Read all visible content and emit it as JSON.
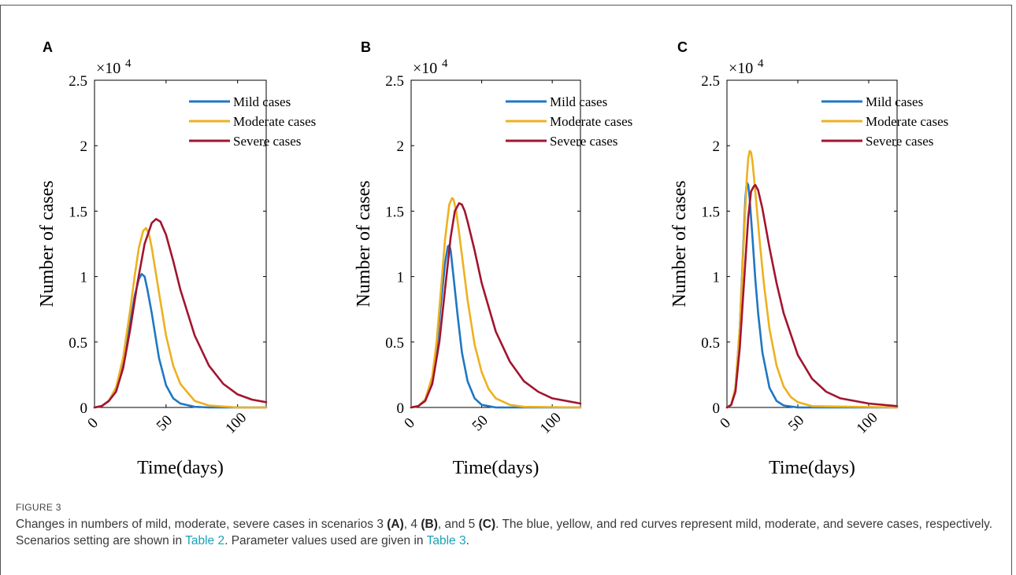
{
  "figure": {
    "label": "FIGURE 3",
    "caption": {
      "part1": "Changes in numbers of mild, moderate, severe cases in scenarios 3 ",
      "a": "(A)",
      "part2": ", 4 ",
      "b": "(B)",
      "part3": ", and 5 ",
      "c": "(C)",
      "part4": ". The blue, yellow, and red curves represent mild, moderate, and severe cases, respectively. Scenarios setting are shown in ",
      "link1": "Table 2",
      "part5": ". Parameter values used are given in ",
      "link2": "Table 3",
      "part6": "."
    }
  },
  "colors": {
    "mild": "#1f77c4",
    "moderate": "#edb120",
    "severe": "#a2142f",
    "link": "#1aa3b8"
  },
  "chart_data": [
    {
      "type": "line",
      "panel": "A",
      "xlabel": "Time(days)",
      "ylabel": "Number of cases",
      "exponent_label": "×10",
      "exponent_sup": "4",
      "xlim": [
        0,
        120
      ],
      "ylim": [
        0,
        2.5
      ],
      "xticks": [
        "0",
        "50",
        "100"
      ],
      "yticks": [
        "0",
        "0.5",
        "1",
        "1.5",
        "2",
        "2.5"
      ],
      "legend_position": "top-right",
      "series": [
        {
          "name": "Mild cases",
          "x": [
            0,
            5,
            10,
            15,
            20,
            25,
            28,
            31,
            33,
            35,
            37,
            40,
            45,
            50,
            55,
            60,
            70,
            80,
            100,
            120
          ],
          "y": [
            0,
            0.01,
            0.05,
            0.15,
            0.35,
            0.65,
            0.85,
            0.98,
            1.02,
            1.0,
            0.9,
            0.72,
            0.38,
            0.17,
            0.07,
            0.03,
            0.005,
            0,
            0,
            0
          ]
        },
        {
          "name": "Moderate cases",
          "x": [
            0,
            5,
            10,
            15,
            20,
            25,
            28,
            31,
            34,
            36,
            38,
            40,
            45,
            50,
            55,
            60,
            70,
            80,
            100,
            120
          ],
          "y": [
            0,
            0.01,
            0.05,
            0.15,
            0.38,
            0.75,
            1.0,
            1.22,
            1.35,
            1.37,
            1.33,
            1.22,
            0.88,
            0.55,
            0.32,
            0.18,
            0.05,
            0.015,
            0,
            0
          ]
        },
        {
          "name": "Severe cases",
          "x": [
            0,
            5,
            10,
            15,
            20,
            25,
            30,
            35,
            40,
            43,
            46,
            50,
            55,
            60,
            70,
            80,
            90,
            100,
            110,
            120
          ],
          "y": [
            0,
            0.01,
            0.05,
            0.12,
            0.3,
            0.6,
            0.95,
            1.25,
            1.41,
            1.44,
            1.42,
            1.32,
            1.12,
            0.9,
            0.55,
            0.32,
            0.18,
            0.1,
            0.06,
            0.04
          ]
        }
      ]
    },
    {
      "type": "line",
      "panel": "B",
      "xlabel": "Time(days)",
      "ylabel": "Number of cases",
      "exponent_label": "×10",
      "exponent_sup": "4",
      "xlim": [
        0,
        120
      ],
      "ylim": [
        0,
        2.5
      ],
      "xticks": [
        "0",
        "50",
        "100"
      ],
      "yticks": [
        "0",
        "0.5",
        "1",
        "1.5",
        "2",
        "2.5"
      ],
      "legend_position": "top-right",
      "series": [
        {
          "name": "Mild cases",
          "x": [
            0,
            5,
            10,
            15,
            18,
            21,
            24,
            26,
            27,
            28,
            30,
            33,
            36,
            40,
            45,
            50,
            60,
            70,
            100,
            120
          ],
          "y": [
            0,
            0.01,
            0.06,
            0.22,
            0.45,
            0.78,
            1.1,
            1.23,
            1.24,
            1.2,
            1.0,
            0.7,
            0.42,
            0.2,
            0.07,
            0.02,
            0,
            0,
            0,
            0
          ]
        },
        {
          "name": "Moderate cases",
          "x": [
            0,
            5,
            10,
            15,
            18,
            21,
            24,
            27,
            29,
            30,
            32,
            35,
            40,
            45,
            50,
            55,
            60,
            70,
            80,
            120
          ],
          "y": [
            0,
            0.01,
            0.06,
            0.24,
            0.5,
            0.88,
            1.28,
            1.55,
            1.6,
            1.59,
            1.5,
            1.25,
            0.82,
            0.48,
            0.27,
            0.14,
            0.07,
            0.02,
            0.005,
            0
          ]
        },
        {
          "name": "Severe cases",
          "x": [
            0,
            5,
            10,
            15,
            20,
            25,
            28,
            31,
            34,
            36,
            38,
            40,
            45,
            50,
            60,
            70,
            80,
            90,
            100,
            120
          ],
          "y": [
            0,
            0.01,
            0.05,
            0.18,
            0.5,
            1.0,
            1.3,
            1.5,
            1.56,
            1.55,
            1.5,
            1.42,
            1.2,
            0.95,
            0.58,
            0.35,
            0.2,
            0.12,
            0.07,
            0.03
          ]
        }
      ]
    },
    {
      "type": "line",
      "panel": "C",
      "xlabel": "Time(days)",
      "ylabel": "Number of cases",
      "exponent_label": "×10",
      "exponent_sup": "4",
      "xlim": [
        0,
        120
      ],
      "ylim": [
        0,
        2.5
      ],
      "xticks": [
        "0",
        "50",
        "100"
      ],
      "yticks": [
        "0",
        "0.5",
        "1",
        "1.5",
        "2",
        "2.5"
      ],
      "legend_position": "top-right",
      "series": [
        {
          "name": "Mild cases",
          "x": [
            0,
            3,
            6,
            9,
            11,
            13,
            14,
            15,
            16,
            18,
            20,
            22,
            25,
            30,
            35,
            40,
            50,
            60,
            100,
            120
          ],
          "y": [
            0,
            0.02,
            0.15,
            0.6,
            1.1,
            1.6,
            1.72,
            1.7,
            1.6,
            1.3,
            0.98,
            0.72,
            0.42,
            0.15,
            0.05,
            0.015,
            0,
            0,
            0,
            0
          ]
        },
        {
          "name": "Moderate cases",
          "x": [
            0,
            3,
            6,
            9,
            12,
            14,
            15,
            16,
            17,
            18,
            20,
            23,
            26,
            30,
            35,
            40,
            45,
            50,
            60,
            120
          ],
          "y": [
            0,
            0.02,
            0.15,
            0.6,
            1.3,
            1.75,
            1.9,
            1.96,
            1.95,
            1.88,
            1.65,
            1.28,
            0.95,
            0.6,
            0.32,
            0.16,
            0.08,
            0.04,
            0.01,
            0
          ]
        },
        {
          "name": "Severe cases",
          "x": [
            0,
            3,
            6,
            9,
            12,
            15,
            17,
            19,
            20,
            22,
            25,
            30,
            35,
            40,
            50,
            60,
            70,
            80,
            100,
            120
          ],
          "y": [
            0,
            0.02,
            0.12,
            0.45,
            0.95,
            1.45,
            1.65,
            1.69,
            1.7,
            1.66,
            1.52,
            1.22,
            0.95,
            0.72,
            0.4,
            0.22,
            0.12,
            0.07,
            0.03,
            0.01
          ]
        }
      ]
    }
  ]
}
